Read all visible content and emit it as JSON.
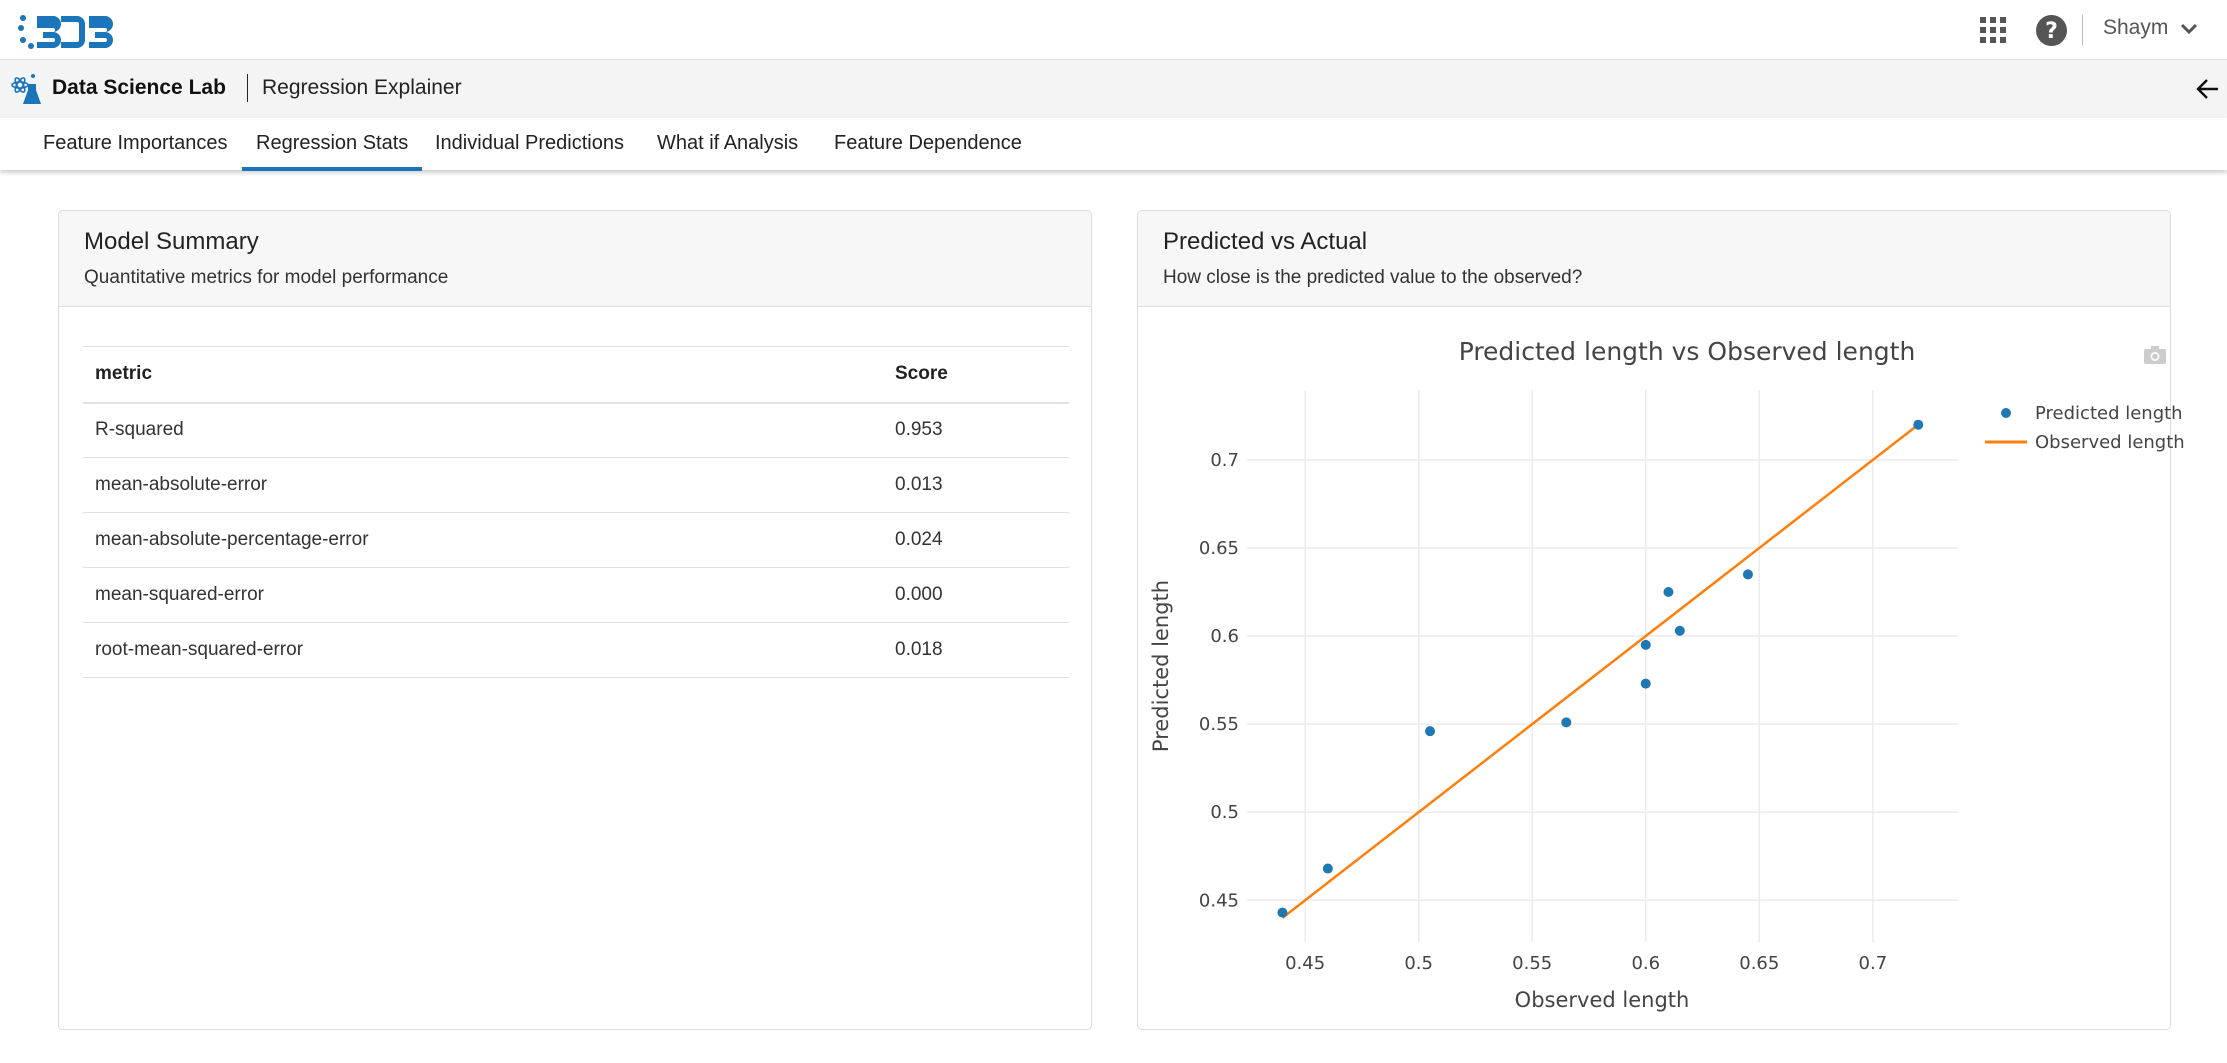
{
  "header": {
    "logo_text": "BDB",
    "user": "Shaym",
    "icons": [
      "apps-grid-icon",
      "help-icon",
      "chevron-down-icon"
    ]
  },
  "subheader": {
    "app": "Data Science Lab",
    "page": "Regression Explainer",
    "back_icon": "arrow-left-icon"
  },
  "tabs": [
    {
      "label": "Feature Importances"
    },
    {
      "label": "Regression Stats",
      "active": true
    },
    {
      "label": "Individual Predictions"
    },
    {
      "label": "What if Analysis"
    },
    {
      "label": "Feature Dependence"
    }
  ],
  "model_summary": {
    "title": "Model Summary",
    "subtitle": "Quantitative metrics for model performance",
    "columns": [
      "metric",
      "Score"
    ],
    "rows": [
      [
        "R-squared",
        "0.953"
      ],
      [
        "mean-absolute-error",
        "0.013"
      ],
      [
        "mean-absolute-percentage-error",
        "0.024"
      ],
      [
        "mean-squared-error",
        "0.000"
      ],
      [
        "root-mean-squared-error",
        "0.018"
      ]
    ]
  },
  "predicted_vs_actual": {
    "title": "Predicted vs Actual",
    "subtitle": "How close is the predicted value to the observed?"
  },
  "chart_data": {
    "type": "scatter",
    "title": "Predicted length vs Observed length",
    "xlabel": "Observed length",
    "ylabel": "Predicted length",
    "xlim": [
      0.4244,
      0.7375
    ],
    "ylim": [
      0.4263,
      0.7397
    ],
    "xticks": [
      "0.45",
      "0.5",
      "0.55",
      "0.6",
      "0.65",
      "0.7"
    ],
    "yticks": [
      "0.45",
      "0.5",
      "0.55",
      "0.6",
      "0.65",
      "0.7"
    ],
    "grid": true,
    "legend": "top-right",
    "series": [
      {
        "name": "Predicted length",
        "type": "scatter",
        "color": "#1f77b4",
        "x": [
          0.44,
          0.46,
          0.505,
          0.565,
          0.6,
          0.6,
          0.61,
          0.615,
          0.645,
          0.72
        ],
        "y": [
          0.443,
          0.468,
          0.546,
          0.551,
          0.595,
          0.573,
          0.625,
          0.603,
          0.635,
          0.72
        ]
      },
      {
        "name": "Observed length",
        "type": "line",
        "color": "#ff7f0e",
        "x": [
          0.44,
          0.72
        ],
        "y": [
          0.44,
          0.72
        ]
      }
    ]
  }
}
